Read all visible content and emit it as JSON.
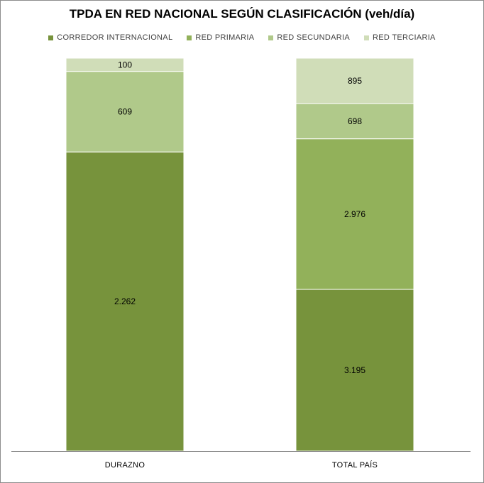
{
  "chart_data": {
    "type": "bar",
    "stacked": true,
    "title": "TPDA EN RED NACIONAL SEGÚN CLASIFICACIÓN (veh/día)",
    "categories": [
      "DURAZNO",
      "TOTAL PAÍS"
    ],
    "series": [
      {
        "name": "CORREDOR INTERNACIONAL",
        "color": "#77933c",
        "values": [
          2262,
          3195
        ],
        "labels": [
          "2.262",
          "3.195"
        ]
      },
      {
        "name": "RED PRIMARIA",
        "color": "#92b15a",
        "values": [
          0,
          2976
        ],
        "labels": [
          "",
          "2.976"
        ]
      },
      {
        "name": "RED SECUNDARIA",
        "color": "#b0c98a",
        "values": [
          609,
          698
        ],
        "labels": [
          "609",
          "698"
        ]
      },
      {
        "name": "RED TERCIARIA",
        "color": "#d0ddb8",
        "values": [
          100,
          895
        ],
        "labels": [
          "100",
          "895"
        ]
      }
    ],
    "legend_position": "top",
    "grid": false
  }
}
